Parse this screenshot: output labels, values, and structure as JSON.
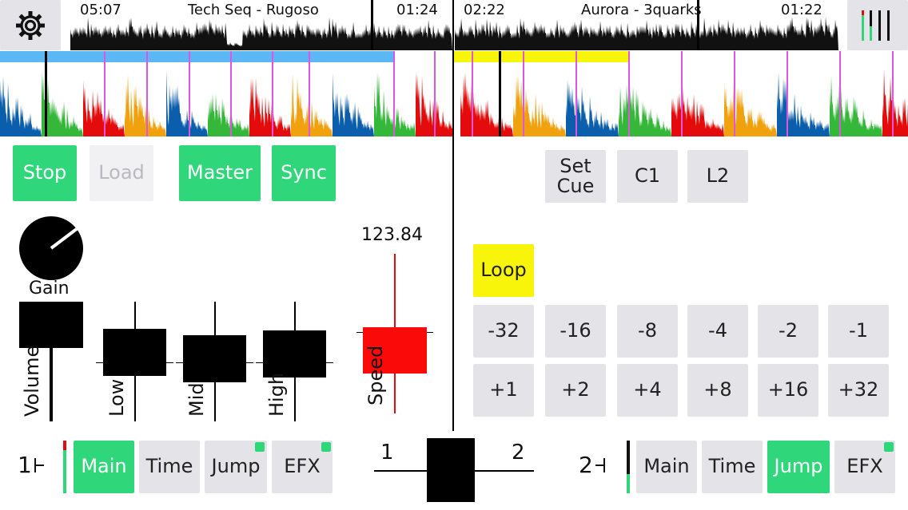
{
  "colors": {
    "green": "#2fd67a",
    "yellow": "#f8f40a",
    "blue": "#5bb8f5",
    "red": "#e30b0b",
    "orange": "#f0a10e",
    "deck_blue": "#0b5eac",
    "wave_green": "#35b73a",
    "magenta": "#e055e0"
  },
  "header": {
    "settings_icon": "gear-icon",
    "deck1": {
      "elapsed": "05:07",
      "title": "Tech Seq - Rugoso",
      "remaining": "01:24"
    },
    "deck2": {
      "elapsed": "02:22",
      "title": "Aurora - 3quarks",
      "remaining": "01:22"
    },
    "meter_icon": "level-meter-icon"
  },
  "deck1": {
    "buttons": {
      "stop": "Stop",
      "load": "Load",
      "master": "Master",
      "sync": "Sync"
    },
    "gain_label": "Gain",
    "volume_label": "Volume",
    "eq_labels": {
      "low": "Low",
      "mid": "Mid",
      "high": "High"
    },
    "speed_label": "Speed",
    "bpm": "123.84",
    "number": "1"
  },
  "deck2": {
    "cue_buttons": {
      "set_cue": "Set Cue",
      "c1": "C1",
      "l2": "L2"
    },
    "loop": "Loop",
    "jump_minus": [
      "-32",
      "-16",
      "-8",
      "-4",
      "-2",
      "-1"
    ],
    "jump_plus": [
      "+1",
      "+2",
      "+4",
      "+8",
      "+16",
      "+32"
    ],
    "number": "2"
  },
  "bottom": {
    "deck1_tabs": [
      "Main",
      "Time",
      "Jump",
      "EFX"
    ],
    "deck2_tabs": [
      "Main",
      "Time",
      "Jump",
      "EFX"
    ],
    "crossfader": {
      "left": "1",
      "right": "2"
    }
  }
}
